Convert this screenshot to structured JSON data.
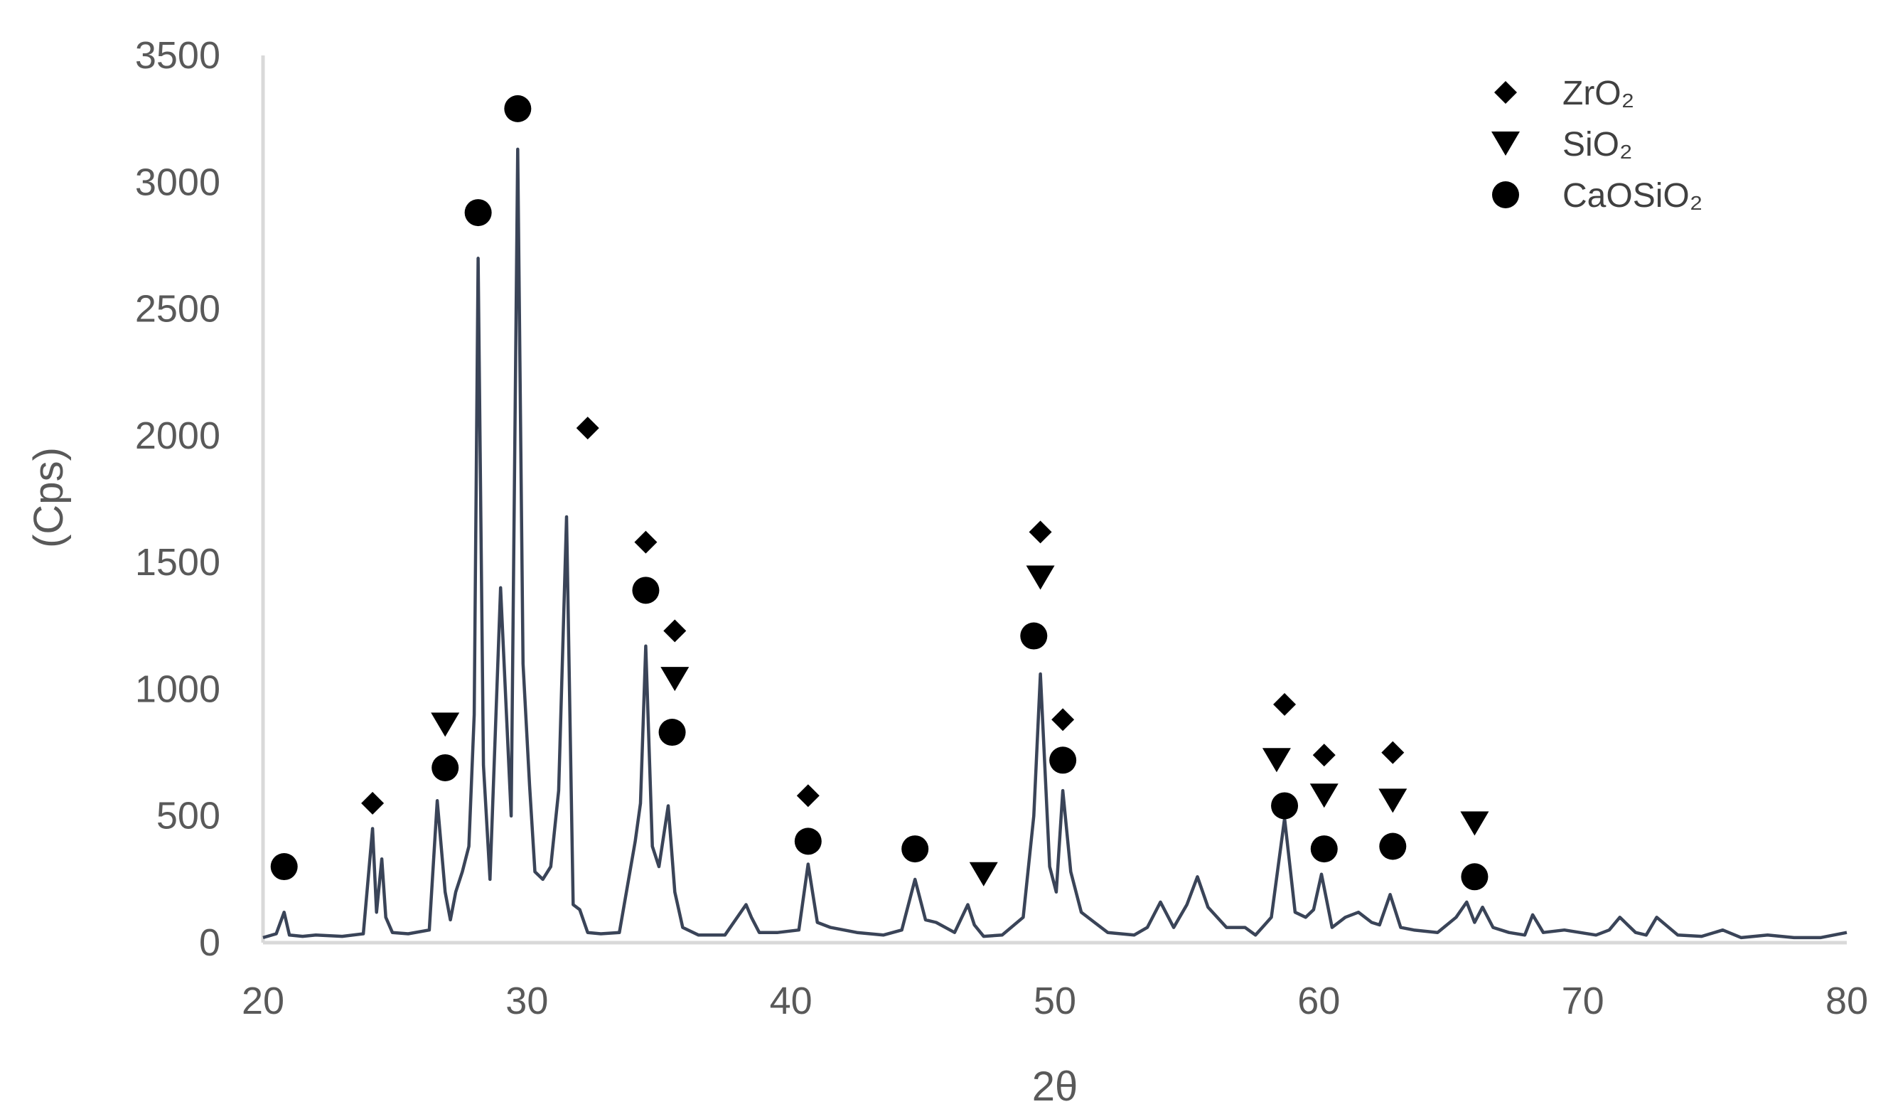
{
  "chart_data": {
    "type": "line",
    "title": "",
    "xlabel": "2θ",
    "ylabel": "(Cps)",
    "xlim": [
      20,
      80
    ],
    "ylim": [
      0,
      3500
    ],
    "x_ticks": [
      "20",
      "30",
      "40",
      "50",
      "60",
      "70",
      "80"
    ],
    "y_ticks": [
      "0",
      "500",
      "1000",
      "1500",
      "2000",
      "2500",
      "3000",
      "3500"
    ],
    "grid": false,
    "legend_position": "top-right",
    "colors": {
      "line": "#3a4458",
      "marker": "#000000",
      "axis": "#d9d9d9",
      "text": "#595959"
    },
    "series": [
      {
        "type": "line",
        "x": [
          20.0,
          20.5,
          20.8,
          21.0,
          21.5,
          22.0,
          23.0,
          23.8,
          24.15,
          24.3,
          24.5,
          24.65,
          24.9,
          25.5,
          26.3,
          26.6,
          26.9,
          27.1,
          27.3,
          27.55,
          27.8,
          28.0,
          28.15,
          28.35,
          28.6,
          29.0,
          29.4,
          29.65,
          29.85,
          30.1,
          30.3,
          30.6,
          30.9,
          31.2,
          31.5,
          31.75,
          32.0,
          32.3,
          32.8,
          33.5,
          34.1,
          34.3,
          34.5,
          34.75,
          35.0,
          35.35,
          35.6,
          35.9,
          36.5,
          37.5,
          38.3,
          38.5,
          38.8,
          39.5,
          40.3,
          40.65,
          41.0,
          41.5,
          42.5,
          43.5,
          44.2,
          44.7,
          45.1,
          45.5,
          46.2,
          46.7,
          46.95,
          47.3,
          48.0,
          48.8,
          49.2,
          49.45,
          49.8,
          50.05,
          50.3,
          50.6,
          51.0,
          51.5,
          52.0,
          53.0,
          53.5,
          54.0,
          54.5,
          55.0,
          55.4,
          55.8,
          56.5,
          57.2,
          57.6,
          58.2,
          58.7,
          59.1,
          59.5,
          59.8,
          60.1,
          60.5,
          61.0,
          61.5,
          62.0,
          62.3,
          62.7,
          63.1,
          63.6,
          64.5,
          65.2,
          65.6,
          65.9,
          66.2,
          66.6,
          67.2,
          67.8,
          68.1,
          68.5,
          69.3,
          70.5,
          71.0,
          71.4,
          72.0,
          72.4,
          72.8,
          73.6,
          74.5,
          75.3,
          76.0,
          77.0,
          78.0,
          79.0,
          80.0
        ],
        "y": [
          20,
          35,
          120,
          30,
          25,
          30,
          25,
          35,
          450,
          120,
          330,
          100,
          40,
          35,
          50,
          560,
          200,
          90,
          200,
          280,
          380,
          900,
          2700,
          700,
          250,
          1400,
          500,
          3130,
          1100,
          620,
          280,
          250,
          300,
          600,
          1680,
          150,
          130,
          40,
          35,
          40,
          400,
          550,
          1170,
          380,
          300,
          540,
          200,
          60,
          30,
          30,
          150,
          100,
          40,
          40,
          50,
          310,
          80,
          60,
          40,
          30,
          50,
          250,
          90,
          80,
          40,
          150,
          70,
          25,
          30,
          100,
          500,
          1060,
          300,
          200,
          600,
          280,
          120,
          80,
          40,
          30,
          60,
          160,
          60,
          150,
          260,
          140,
          60,
          60,
          30,
          100,
          490,
          120,
          100,
          130,
          270,
          60,
          100,
          120,
          80,
          70,
          190,
          60,
          50,
          40,
          100,
          160,
          80,
          140,
          60,
          40,
          30,
          110,
          40,
          50,
          30,
          50,
          100,
          40,
          30,
          100,
          30,
          25,
          50,
          20,
          30,
          20,
          20,
          40
        ]
      }
    ],
    "legend": [
      {
        "name": "ZrO₂",
        "marker": "diamond"
      },
      {
        "name": "SiO₂",
        "marker": "triangle-down"
      },
      {
        "name": "CaOSiO₂",
        "marker": "circle"
      }
    ],
    "annotations": [
      {
        "marker": "circle",
        "x": 20.8,
        "y": 300
      },
      {
        "marker": "diamond",
        "x": 24.15,
        "y": 550
      },
      {
        "marker": "circle",
        "x": 26.9,
        "y": 690
      },
      {
        "marker": "triangle-down",
        "x": 26.9,
        "y": 860
      },
      {
        "marker": "circle",
        "x": 28.15,
        "y": 2880
      },
      {
        "marker": "circle",
        "x": 29.65,
        "y": 3290
      },
      {
        "marker": "diamond",
        "x": 32.3,
        "y": 2030
      },
      {
        "marker": "diamond",
        "x": 34.5,
        "y": 1580
      },
      {
        "marker": "circle",
        "x": 34.5,
        "y": 1390
      },
      {
        "marker": "diamond",
        "x": 35.6,
        "y": 1230
      },
      {
        "marker": "triangle-down",
        "x": 35.6,
        "y": 1040
      },
      {
        "marker": "circle",
        "x": 35.5,
        "y": 830
      },
      {
        "marker": "diamond",
        "x": 40.65,
        "y": 580
      },
      {
        "marker": "circle",
        "x": 40.65,
        "y": 400
      },
      {
        "marker": "circle",
        "x": 44.7,
        "y": 370
      },
      {
        "marker": "triangle-down",
        "x": 47.3,
        "y": 270
      },
      {
        "marker": "diamond",
        "x": 49.45,
        "y": 1620
      },
      {
        "marker": "triangle-down",
        "x": 49.45,
        "y": 1440
      },
      {
        "marker": "circle",
        "x": 49.2,
        "y": 1210
      },
      {
        "marker": "diamond",
        "x": 50.3,
        "y": 880
      },
      {
        "marker": "circle",
        "x": 50.3,
        "y": 720
      },
      {
        "marker": "diamond",
        "x": 58.7,
        "y": 940
      },
      {
        "marker": "triangle-down",
        "x": 58.4,
        "y": 720
      },
      {
        "marker": "circle",
        "x": 58.7,
        "y": 540
      },
      {
        "marker": "diamond",
        "x": 60.2,
        "y": 740
      },
      {
        "marker": "triangle-down",
        "x": 60.2,
        "y": 580
      },
      {
        "marker": "circle",
        "x": 60.2,
        "y": 370
      },
      {
        "marker": "diamond",
        "x": 62.8,
        "y": 750
      },
      {
        "marker": "triangle-down",
        "x": 62.8,
        "y": 560
      },
      {
        "marker": "circle",
        "x": 62.8,
        "y": 380
      },
      {
        "marker": "triangle-down",
        "x": 65.9,
        "y": 470
      },
      {
        "marker": "circle",
        "x": 65.9,
        "y": 260
      }
    ]
  }
}
